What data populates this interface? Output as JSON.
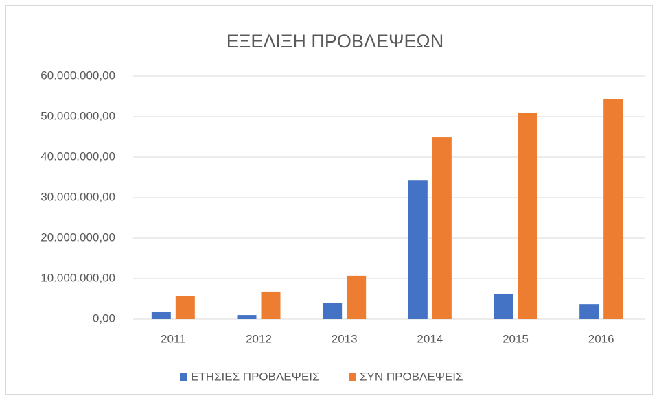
{
  "chart_data": {
    "type": "bar",
    "title": "ΕΞΕΛΙΞΗ ΠΡΟΒΛΕΨΕΩΝ",
    "categories": [
      "2011",
      "2012",
      "2013",
      "2014",
      "2015",
      "2016"
    ],
    "series": [
      {
        "name": "ΕΤΗΣΙΕΣ ΠΡΟΒΛΕΨΕΙΣ",
        "color": "#4472c4",
        "values": [
          1700000,
          1000000,
          3900000,
          34200000,
          6100000,
          3700000
        ]
      },
      {
        "name": "ΣΥΝ ΠΡΟΒΛΕΨΕΙΣ",
        "color": "#ed7d31",
        "values": [
          5600000,
          6800000,
          10700000,
          44900000,
          51000000,
          54400000
        ]
      }
    ],
    "ylim": [
      0,
      60000000
    ],
    "yticks": [
      {
        "value": 0,
        "label": "0,00"
      },
      {
        "value": 10000000,
        "label": "10.000.000,00"
      },
      {
        "value": 20000000,
        "label": "20.000.000,00"
      },
      {
        "value": 30000000,
        "label": "30.000.000,00"
      },
      {
        "value": 40000000,
        "label": "40.000.000,00"
      },
      {
        "value": 50000000,
        "label": "50.000.000,00"
      },
      {
        "value": 60000000,
        "label": "60.000.000,00"
      }
    ],
    "grid": true,
    "legend": "bottom"
  }
}
